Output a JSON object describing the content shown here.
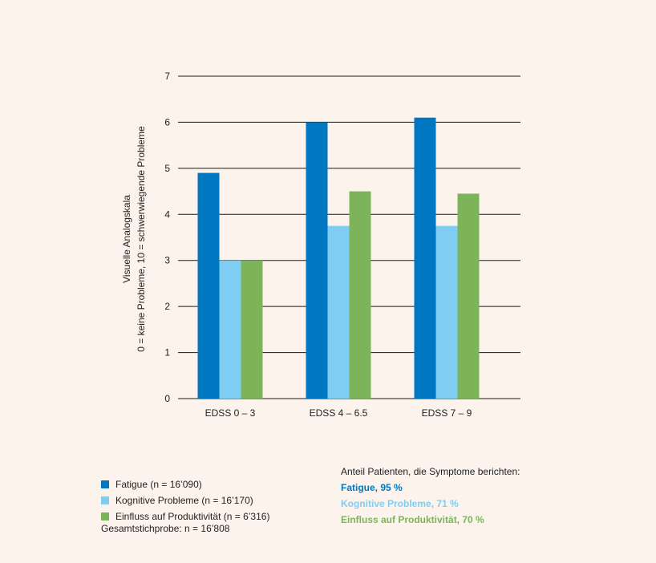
{
  "chart_data": {
    "type": "bar",
    "categories": [
      "EDSS 0 – 3",
      "EDSS 4 – 6.5",
      "EDSS 7 – 9"
    ],
    "series": [
      {
        "name": "Fatigue (n = 16’090)",
        "color": "#0077c1",
        "values": [
          4.9,
          6.0,
          6.1
        ]
      },
      {
        "name": "Kognitive Probleme (n = 16’170)",
        "color": "#7fcdf2",
        "values": [
          3.0,
          3.75,
          3.75
        ]
      },
      {
        "name": "Einfluss auf Produktivität (n = 6’316)",
        "color": "#7db45a",
        "values": [
          3.0,
          4.5,
          4.45
        ]
      }
    ],
    "ylabel_line1": "Visuelle Analogskala",
    "ylabel_line2": "0 = keine Probleme, 10 = schwerwiegende Probleme",
    "ylim": [
      0,
      7
    ],
    "yticks": [
      0,
      1,
      2,
      3,
      4,
      5,
      6,
      7
    ],
    "grid": true
  },
  "total_sample": "Gesamtstichprobe: n = 16’808",
  "share": {
    "title": "Anteil Patienten, die Symptome berichten:",
    "items": [
      {
        "text": "Fatigue, 95 %",
        "color": "#0077c1"
      },
      {
        "text": "Kognitive Probleme, 71 %",
        "color": "#7fcdf2"
      },
      {
        "text": "Einfluss auf Produktivität, 70 %",
        "color": "#7db45a"
      }
    ]
  }
}
